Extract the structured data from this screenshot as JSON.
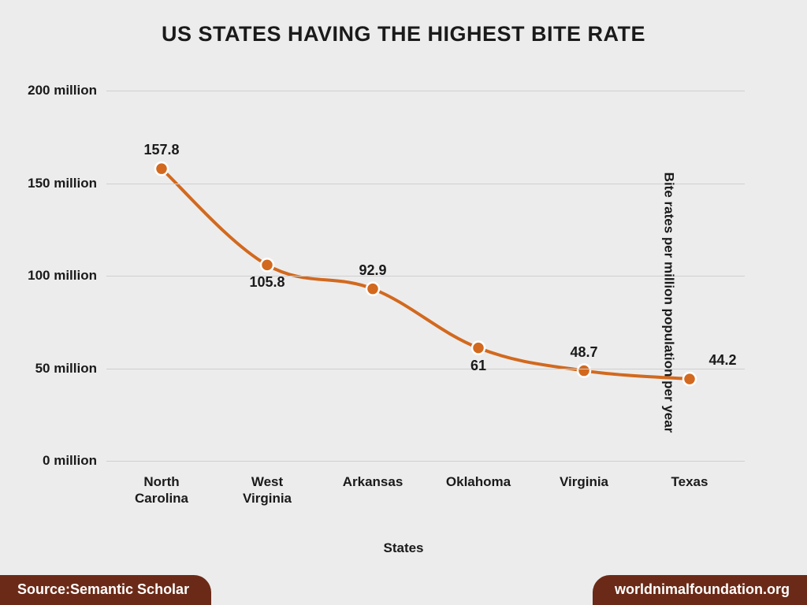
{
  "title": "US STATES HAVING THE HIGHEST BITE RATE",
  "title_fontsize": 27,
  "chart": {
    "type": "line",
    "background_color": "#ececec",
    "grid_color": "#cfcfcf",
    "line_color": "#d2691e",
    "marker_fill": "#d2691e",
    "marker_stroke": "#ffffff",
    "marker_radius": 8,
    "marker_stroke_width": 2.5,
    "line_width": 4,
    "ylim": [
      0,
      200
    ],
    "ytick_step": 50,
    "ytick_suffix": " million",
    "yticks": [
      0,
      50,
      100,
      150,
      200
    ],
    "categories": [
      "North\nCarolina",
      "West\nVirginia",
      "Arkansas",
      "Oklahoma",
      "Virginia",
      "Texas"
    ],
    "values": [
      157.8,
      105.8,
      92.9,
      61,
      48.7,
      44.2
    ],
    "value_labels": [
      "157.8",
      "105.8",
      "92.9",
      "61",
      "48.7",
      "44.2"
    ],
    "label_positions": [
      "above",
      "below",
      "above",
      "below",
      "above",
      "right"
    ],
    "x_axis_title": "States",
    "y_axis_title": "Bite rates per million population per year",
    "tick_fontsize": 17,
    "axis_title_fontsize": 17,
    "data_label_fontsize": 18
  },
  "footer": {
    "source_label": "Source:Semantic Scholar",
    "site_label": "worldnimalfoundation.org",
    "pill_color": "#6b2a17",
    "text_color": "#ffffff",
    "fontsize": 18
  }
}
